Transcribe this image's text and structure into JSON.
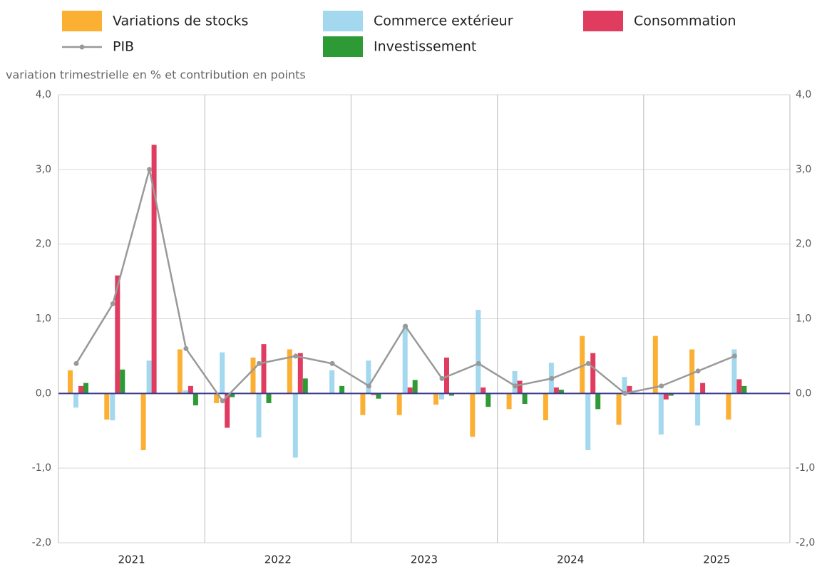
{
  "chart_data": {
    "type": "bar",
    "y_label": "variation trimestrielle en % et contribution en points",
    "year_labels": [
      "2021",
      "2022",
      "2023",
      "2024",
      "2025"
    ],
    "series": [
      {
        "name": "Variations de stocks",
        "type": "bar",
        "color": "#fbb034",
        "values": [
          0.31,
          -0.35,
          -0.76,
          0.59,
          -0.13,
          0.48,
          0.59,
          0.0,
          -0.29,
          -0.29,
          -0.15,
          -0.58,
          -0.21,
          -0.36,
          0.77,
          -0.42,
          0.77,
          0.59,
          -0.35,
          null
        ]
      },
      {
        "name": "Commerce extérieur",
        "type": "bar",
        "color": "#a3d8ef",
        "values": [
          -0.19,
          -0.36,
          0.44,
          0.04,
          0.55,
          -0.59,
          -0.86,
          0.31,
          0.44,
          0.91,
          -0.08,
          1.12,
          0.3,
          0.41,
          -0.76,
          0.22,
          -0.55,
          -0.43,
          0.59,
          null
        ]
      },
      {
        "name": "Consommation",
        "type": "bar",
        "color": "#e03c5f",
        "values": [
          0.1,
          1.58,
          3.33,
          0.1,
          -0.46,
          0.66,
          0.54,
          0.0,
          -0.02,
          0.08,
          0.48,
          0.08,
          0.17,
          0.08,
          0.54,
          0.1,
          -0.08,
          0.14,
          0.19,
          null
        ]
      },
      {
        "name": "PIB",
        "type": "line",
        "color": "#999999",
        "values": [
          0.4,
          1.2,
          3.0,
          0.6,
          -0.1,
          0.4,
          0.5,
          0.4,
          0.1,
          0.9,
          0.2,
          0.4,
          0.1,
          0.2,
          0.4,
          0.0,
          0.1,
          0.3,
          0.5,
          null
        ]
      },
      {
        "name": "Investissement",
        "type": "bar",
        "color": "#2e9a35",
        "values": [
          0.14,
          0.32,
          0.0,
          -0.16,
          -0.05,
          -0.13,
          0.2,
          0.1,
          -0.07,
          0.18,
          -0.03,
          -0.18,
          -0.14,
          0.05,
          -0.21,
          0.0,
          -0.03,
          0.0,
          0.1,
          null
        ]
      }
    ],
    "ylim": [
      -2,
      4
    ],
    "yticks": [
      {
        "value": -2,
        "label": "-2,0"
      },
      {
        "value": -1,
        "label": "-1,0"
      },
      {
        "value": 0,
        "label": "0,0"
      },
      {
        "value": 1,
        "label": "1,0"
      },
      {
        "value": 2,
        "label": "2,0"
      },
      {
        "value": 3,
        "label": "3,0"
      },
      {
        "value": 4,
        "label": "4,0"
      }
    ],
    "y2lim": [
      -2,
      4
    ],
    "y2ticks": [
      {
        "value": -2,
        "label": "-2,0"
      },
      {
        "value": -1,
        "label": "-1,0"
      },
      {
        "value": 0,
        "label": "0,0"
      },
      {
        "value": 1,
        "label": "1,0"
      },
      {
        "value": 2,
        "label": "2,0"
      },
      {
        "value": 3,
        "label": "3,0"
      },
      {
        "value": 4,
        "label": "4,0"
      }
    ],
    "grid": true,
    "zero_line_color": "#3b3b8f"
  }
}
